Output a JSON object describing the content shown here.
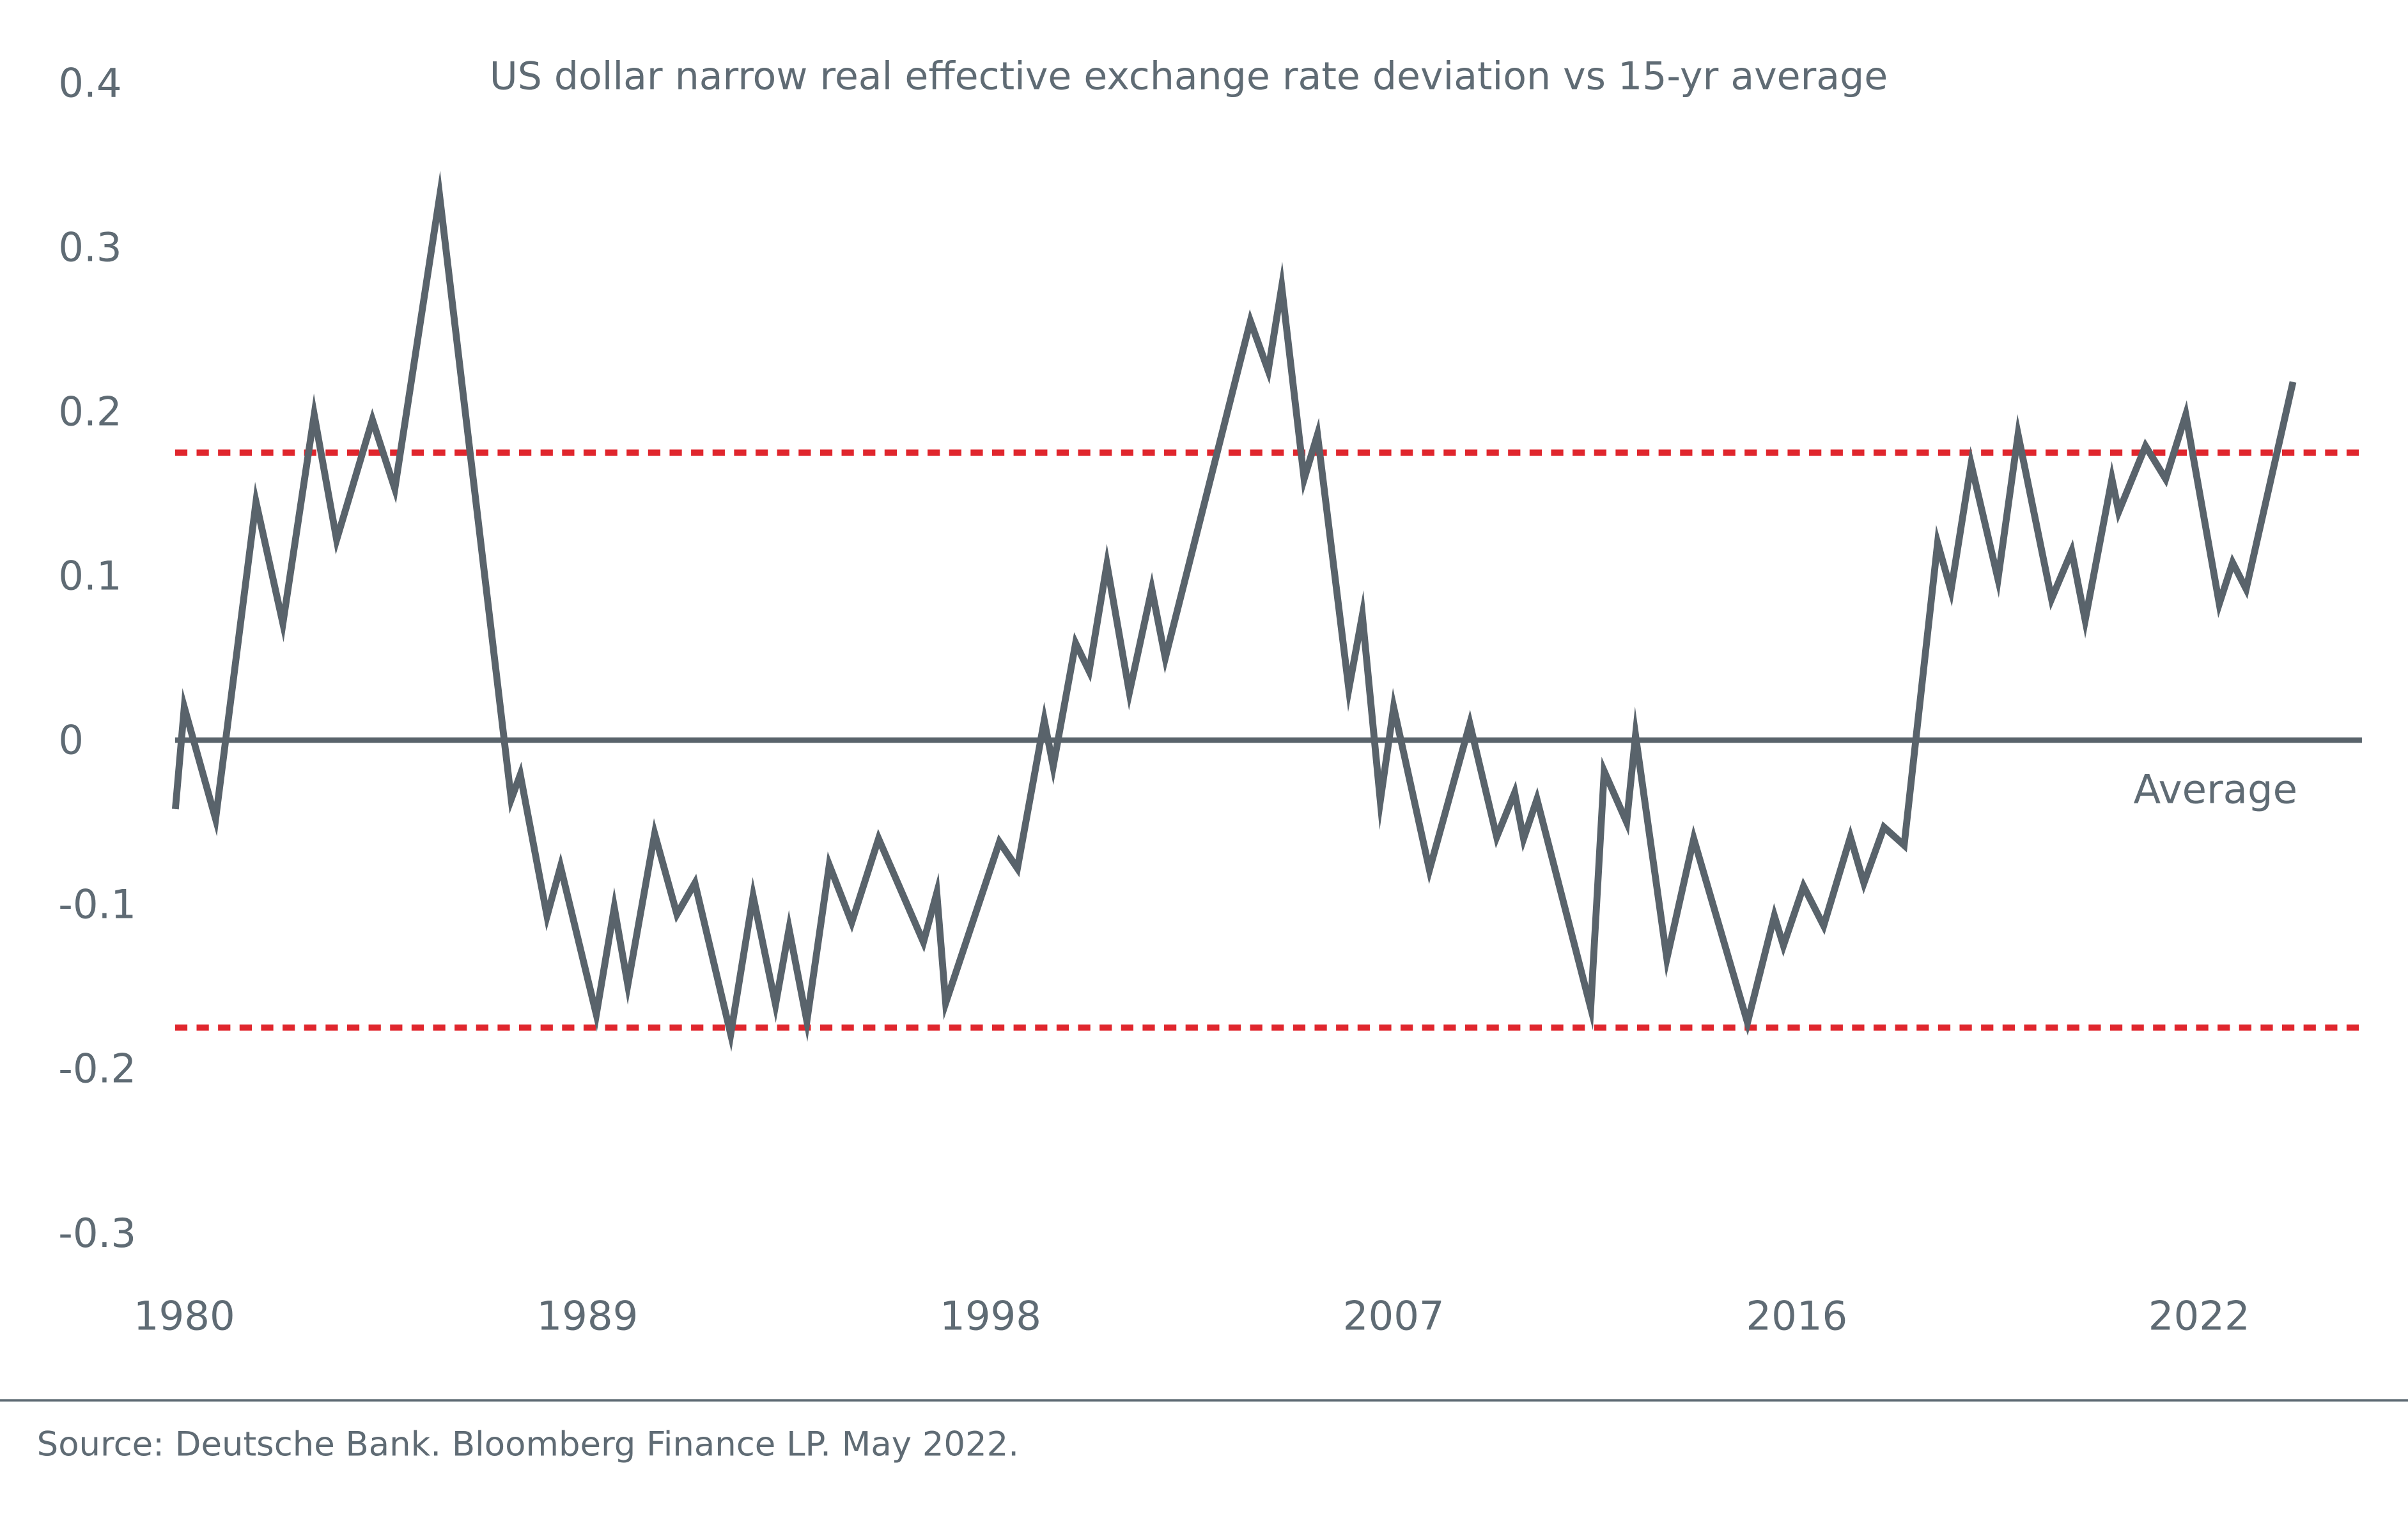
{
  "chart_data": {
    "type": "line",
    "title": "US dollar narrow real effective exchange rate deviation vs 15-yr average",
    "xlabel": "",
    "ylabel": "",
    "ylim": [
      -0.3,
      0.4
    ],
    "yticks": [
      "0.4",
      "0.3",
      "0.2",
      "0.1",
      "0",
      "-0.1",
      "-0.2",
      "-0.3"
    ],
    "ytick_values": [
      0.4,
      0.3,
      0.2,
      0.1,
      0,
      -0.1,
      -0.2,
      -0.3
    ],
    "xticks": [
      "1980",
      "1989",
      "1998",
      "2007",
      "2016",
      "2022"
    ],
    "xtick_values": [
      1980,
      1989,
      1998,
      2007,
      2016,
      2022
    ],
    "grid": false,
    "legend": "none",
    "reference_lines": [
      {
        "label": "Average",
        "value": 0,
        "style": "solid",
        "color": "#59636b"
      },
      {
        "value": 0.175,
        "style": "dotted",
        "color": "#e0262d"
      },
      {
        "value": -0.175,
        "style": "dotted",
        "color": "#e0262d"
      }
    ],
    "series": [
      {
        "color": "#59636b",
        "x": [
          1979.8,
          1980.0,
          1980.7,
          1981.6,
          1982.2,
          1982.9,
          1983.4,
          1984.2,
          1984.7,
          1985.7,
          1987.3,
          1987.5,
          1988.1,
          1988.4,
          1989.2,
          1989.6,
          1989.9,
          1990.5,
          1991.0,
          1991.4,
          1992.2,
          1992.7,
          1993.2,
          1993.5,
          1993.9,
          1994.4,
          1994.9,
          1995.5,
          1996.5,
          1996.8,
          1997.0,
          1998.2,
          1998.6,
          1999.2,
          1999.4,
          1999.9,
          2000.2,
          2000.6,
          2001.1,
          2001.6,
          2001.9,
          2003.8,
          2004.2,
          2004.5,
          2005.0,
          2005.3,
          2006.0,
          2006.3,
          2006.7,
          2007.0,
          2007.8,
          2008.7,
          2009.3,
          2009.7,
          2009.9,
          2010.2,
          2011.4,
          2011.7,
          2012.2,
          2012.4,
          2013.1,
          2013.7,
          2014.9,
          2015.5,
          2015.7,
          2016.1,
          2016.4,
          2016.8,
          2017.0,
          2017.3,
          2017.6,
          2018.1,
          2018.3,
          2018.6,
          2019.0,
          2019.3,
          2019.8,
          2020.1,
          2020.3,
          2020.7,
          2020.8,
          2021.2,
          2021.5,
          2021.8,
          2022.3,
          2022.5,
          2022.7,
          2023.4
        ],
        "y": [
          -0.042,
          0.02,
          -0.048,
          0.145,
          0.071,
          0.198,
          0.122,
          0.195,
          0.153,
          0.331,
          -0.036,
          -0.021,
          -0.107,
          -0.077,
          -0.167,
          -0.102,
          -0.149,
          -0.057,
          -0.106,
          -0.087,
          -0.179,
          -0.095,
          -0.161,
          -0.115,
          -0.171,
          -0.076,
          -0.111,
          -0.06,
          -0.123,
          -0.093,
          -0.16,
          -0.062,
          -0.078,
          0.012,
          -0.016,
          0.059,
          0.042,
          0.107,
          0.029,
          0.092,
          0.05,
          0.255,
          0.225,
          0.276,
          0.159,
          0.186,
          0.031,
          0.076,
          -0.037,
          0.02,
          -0.079,
          0.01,
          -0.059,
          -0.032,
          -0.06,
          -0.036,
          -0.163,
          -0.019,
          -0.05,
          0.003,
          -0.133,
          -0.06,
          -0.172,
          -0.107,
          -0.125,
          -0.089,
          -0.113,
          -0.059,
          -0.087,
          -0.053,
          -0.064,
          0.12,
          0.091,
          0.168,
          0.098,
          0.186,
          0.086,
          0.115,
          0.073,
          0.159,
          0.139,
          0.179,
          0.159,
          0.198,
          0.083,
          0.108,
          0.092,
          0.218
        ]
      }
    ],
    "annotations": [
      "Average"
    ],
    "source": "Source: Deutsche Bank. Bloomberg Finance LP. May 2022."
  }
}
